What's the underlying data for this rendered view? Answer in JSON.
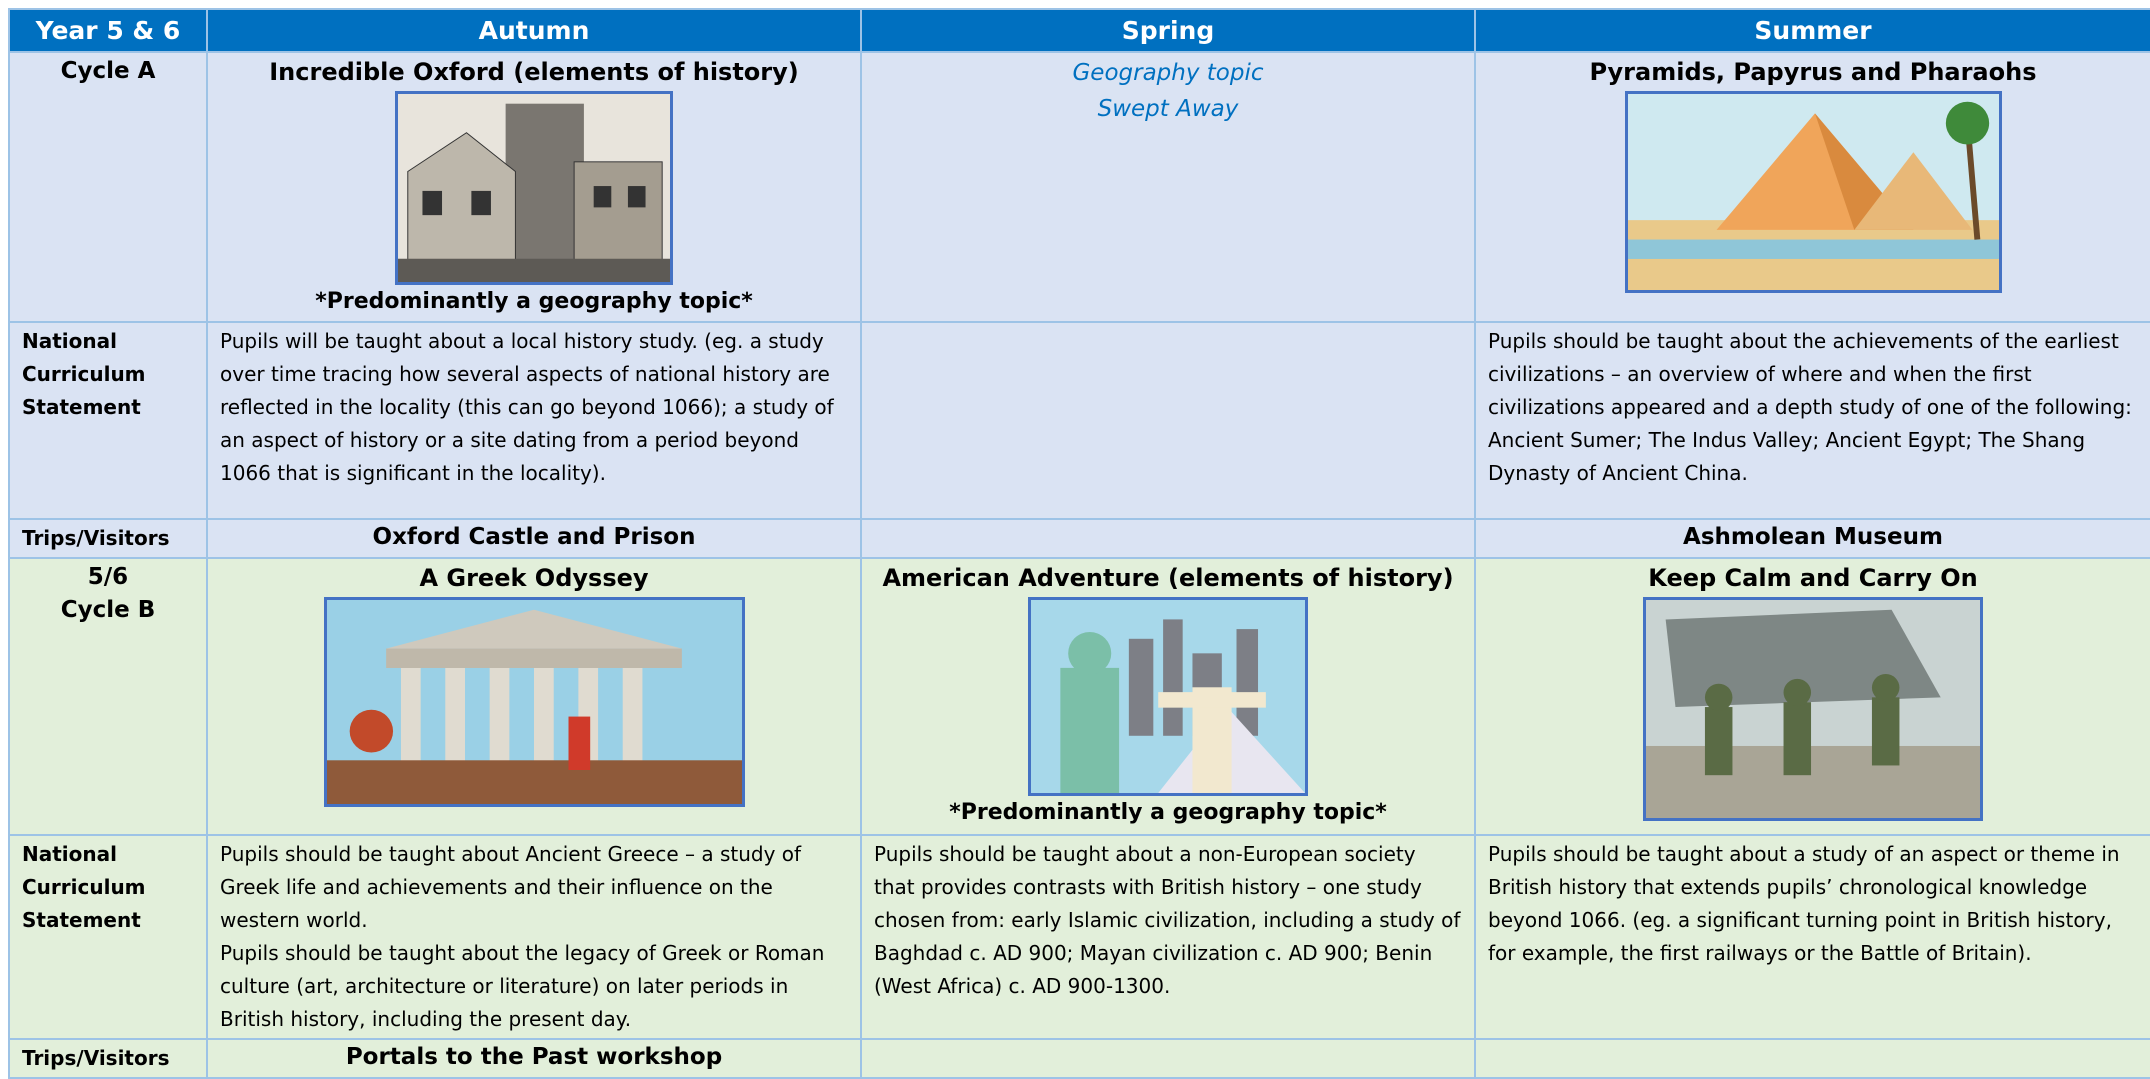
{
  "table": {
    "header": [
      "Year 5 & 6",
      "Autumn",
      "Spring",
      "Summer"
    ],
    "rows": [
      {
        "label": [
          "Cycle A"
        ],
        "cells": [
          {
            "title": "Incredible Oxford (elements of history)",
            "note": "*Predominantly a geography topic*"
          },
          {
            "lines": [
              "Geography topic",
              "Swept Away"
            ]
          },
          {
            "title": "Pyramids, Papyrus and Pharaohs"
          }
        ]
      },
      {
        "label": [
          "National Curriculum Statement"
        ],
        "cells": [
          {
            "paragraphs": [
              "Pupils will be taught about a local history study. (eg. a study over time tracing how several aspects of national history are reflected in the locality (this can go beyond 1066); a study of an aspect of history or a site dating from a period beyond 1066 that is significant in the locality)."
            ]
          },
          null,
          {
            "paragraphs": [
              "Pupils should be taught about the achievements of the earliest civilizations – an overview of where and when the first",
              "civilizations appeared and a depth study of one of the following: Ancient Sumer; The Indus Valley; Ancient Egypt; The Shang Dynasty of Ancient China."
            ]
          }
        ]
      },
      {
        "label": [
          "Trips/Visitors"
        ],
        "cells": [
          "Oxford Castle and Prison",
          null,
          "Ashmolean Museum"
        ]
      },
      {
        "label": [
          "5/6",
          "Cycle B"
        ],
        "cells": [
          {
            "title": "A Greek Odyssey"
          },
          {
            "title": "American Adventure (elements of history)",
            "note": "*Predominantly a geography topic*"
          },
          {
            "title": "Keep Calm and Carry On"
          }
        ]
      },
      {
        "label": [
          "National Curriculum Statement"
        ],
        "cells": [
          {
            "paragraphs": [
              "Pupils should be taught about Ancient Greece – a study of Greek life and achievements and their influence on the western world.",
              "Pupils should be taught about the legacy of Greek or Roman culture (art, architecture or literature) on later periods in British history, including the present day."
            ]
          },
          {
            "paragraphs": [
              "Pupils should be taught about a non-European society that provides contrasts with British history – one study chosen from: early Islamic civilization, including a study of Baghdad c. AD 900; Mayan civilization c. AD 900; Benin (West Africa) c. AD 900-1300."
            ]
          },
          {
            "paragraphs": [
              "Pupils should be taught about a study of an aspect or theme in British history that extends pupils’ chronological knowledge beyond 1066. (eg. a significant turning point in British history, for example, the first railways or the Battle of Britain)."
            ]
          }
        ]
      },
      {
        "label": [
          "Trips/Visitors"
        ],
        "cells": [
          "Portals to the Past workshop",
          null,
          null
        ]
      }
    ]
  }
}
